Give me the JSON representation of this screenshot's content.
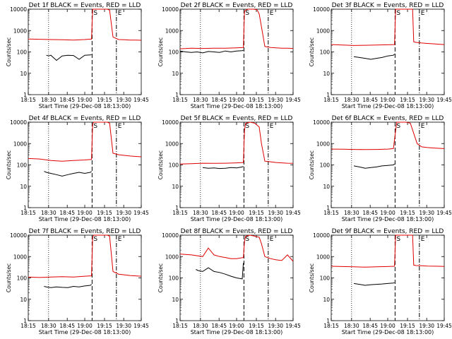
{
  "colors": {
    "events": "#000000",
    "lld": "#e00000",
    "frame": "#000000",
    "background": "#ffffff"
  },
  "chart_data": [
    {
      "type": "line",
      "title": "Det 1f BLACK = Events, RED = LLD",
      "xlabel": "Start Time (29-Dec-08 18:13:00)",
      "ylabel": "Counts/sec",
      "y_scale": "log",
      "ylim": [
        1,
        10000
      ],
      "xlim": [
        0,
        100
      ],
      "x_ticks": [
        "18:15",
        "18:30",
        "18:45",
        "19:00",
        "19:15",
        "19:30",
        "19:45"
      ],
      "y_ticks": [
        "1",
        "10",
        "100",
        "1000",
        "10000"
      ],
      "markers": [
        "S",
        "E"
      ],
      "series": [
        {
          "role": "lld",
          "x": [
            0,
            10,
            20,
            30,
            40,
            50,
            56,
            57,
            58,
            60,
            65,
            70,
            72,
            75,
            80,
            85,
            90,
            95,
            100
          ],
          "y": [
            400,
            390,
            380,
            370,
            360,
            380,
            400,
            10000,
            10000,
            10000,
            10000,
            10000,
            9000,
            500,
            380,
            370,
            360,
            360,
            350
          ]
        },
        {
          "role": "events",
          "x": [
            16,
            18,
            20,
            25,
            30,
            35,
            40,
            45,
            50,
            55,
            56
          ],
          "y": [
            70,
            65,
            70,
            40,
            65,
            70,
            68,
            45,
            70,
            72,
            75
          ]
        }
      ]
    },
    {
      "type": "line",
      "title": "Det 2f BLACK = Events, RED = LLD",
      "xlabel": "Start Time (29-Dec-08 18:13:00)",
      "ylabel": "Counts/sec",
      "y_scale": "log",
      "ylim": [
        1,
        10000
      ],
      "xlim": [
        0,
        100
      ],
      "x_ticks": [
        "18:15",
        "18:30",
        "18:45",
        "19:00",
        "19:15",
        "19:30",
        "19:45"
      ],
      "y_ticks": [
        "1",
        "10",
        "100",
        "1000",
        "10000"
      ],
      "markers": [
        "S",
        "E"
      ],
      "series": [
        {
          "role": "lld",
          "x": [
            0,
            10,
            20,
            30,
            40,
            50,
            56,
            57,
            58,
            60,
            65,
            68,
            70,
            72,
            75,
            80,
            85,
            90,
            95,
            100
          ],
          "y": [
            140,
            150,
            145,
            150,
            150,
            155,
            160,
            8000,
            9000,
            10000,
            10000,
            9500,
            6000,
            1500,
            180,
            160,
            155,
            150,
            150,
            145
          ]
        },
        {
          "role": "events",
          "x": [
            0,
            5,
            10,
            15,
            20,
            25,
            30,
            35,
            40,
            45,
            50,
            55,
            56
          ],
          "y": [
            110,
            100,
            95,
            100,
            90,
            105,
            100,
            95,
            110,
            100,
            110,
            115,
            120
          ]
        }
      ]
    },
    {
      "type": "line",
      "title": "Det 3f BLACK = Events, RED = LLD",
      "xlabel": "Start Time (29-Dec-08 18:13:00)",
      "ylabel": "Counts/sec",
      "y_scale": "log",
      "ylim": [
        1,
        10000
      ],
      "xlim": [
        0,
        100
      ],
      "x_ticks": [
        "18:15",
        "18:30",
        "18:45",
        "19:00",
        "19:15",
        "19:30",
        "19:45"
      ],
      "y_ticks": [
        "1",
        "10",
        "100",
        "1000",
        "10000"
      ],
      "markers": [
        "S",
        "E"
      ],
      "series": [
        {
          "role": "lld",
          "x": [
            0,
            10,
            20,
            30,
            40,
            50,
            56,
            57,
            58,
            65,
            72,
            73,
            75,
            80,
            85,
            90,
            95,
            100
          ],
          "y": [
            220,
            210,
            200,
            205,
            210,
            215,
            220,
            10000,
            10000,
            10000,
            10000,
            300,
            280,
            260,
            250,
            240,
            230,
            220
          ]
        },
        {
          "role": "events",
          "x": [
            20,
            25,
            30,
            35,
            40,
            45,
            50,
            55,
            56
          ],
          "y": [
            60,
            55,
            50,
            45,
            50,
            55,
            65,
            70,
            80
          ]
        }
      ]
    },
    {
      "type": "line",
      "title": "Det 4f BLACK = Events, RED = LLD",
      "xlabel": "Start Time (29-Dec-08 18:13:00)",
      "ylabel": "Counts/sec",
      "y_scale": "log",
      "ylim": [
        1,
        10000
      ],
      "xlim": [
        0,
        100
      ],
      "x_ticks": [
        "18:15",
        "18:30",
        "18:45",
        "19:00",
        "19:15",
        "19:30",
        "19:45"
      ],
      "y_ticks": [
        "1",
        "10",
        "100",
        "1000",
        "10000"
      ],
      "markers": [
        "S",
        "E"
      ],
      "series": [
        {
          "role": "lld",
          "x": [
            0,
            10,
            20,
            30,
            40,
            50,
            56,
            57,
            58,
            65,
            70,
            72,
            75,
            80,
            85,
            90,
            95,
            100
          ],
          "y": [
            200,
            190,
            160,
            150,
            160,
            170,
            180,
            8000,
            10000,
            10000,
            10000,
            9000,
            350,
            300,
            280,
            260,
            250,
            240
          ]
        },
        {
          "role": "events",
          "x": [
            14,
            16,
            20,
            25,
            30,
            35,
            40,
            45,
            50,
            55,
            56
          ],
          "y": [
            50,
            45,
            40,
            35,
            30,
            35,
            40,
            45,
            40,
            45,
            50
          ]
        }
      ]
    },
    {
      "type": "line",
      "title": "Det 5f BLACK = Events, RED = LLD",
      "xlabel": "Start Time (29-Dec-08 18:13:00)",
      "ylabel": "Counts/sec",
      "y_scale": "log",
      "ylim": [
        1,
        10000
      ],
      "xlim": [
        0,
        100
      ],
      "x_ticks": [
        "18:15",
        "18:30",
        "18:45",
        "19:00",
        "19:15",
        "19:30",
        "19:45"
      ],
      "y_ticks": [
        "1",
        "10",
        "100",
        "1000",
        "10000"
      ],
      "markers": [
        "S",
        "E"
      ],
      "series": [
        {
          "role": "lld",
          "x": [
            0,
            10,
            20,
            30,
            40,
            50,
            56,
            57,
            58,
            62,
            66,
            70,
            72,
            75,
            80,
            85,
            90,
            95,
            100
          ],
          "y": [
            110,
            115,
            120,
            118,
            120,
            125,
            130,
            4000,
            9000,
            10000,
            9000,
            6000,
            1000,
            150,
            140,
            130,
            125,
            120,
            118
          ]
        },
        {
          "role": "events",
          "x": [
            20,
            25,
            30,
            35,
            40,
            45,
            50,
            55,
            56
          ],
          "y": [
            75,
            70,
            72,
            68,
            70,
            75,
            72,
            80,
            85
          ]
        }
      ]
    },
    {
      "type": "line",
      "title": "Det 6f BLACK = Events, RED = LLD",
      "xlabel": "Start Time (29-Dec-08 18:13:00)",
      "ylabel": "Counts/sec",
      "y_scale": "log",
      "ylim": [
        1,
        10000
      ],
      "xlim": [
        0,
        100
      ],
      "x_ticks": [
        "18:15",
        "18:30",
        "18:45",
        "19:00",
        "19:15",
        "19:30",
        "19:45"
      ],
      "y_ticks": [
        "1",
        "10",
        "100",
        "1000",
        "10000"
      ],
      "markers": [
        "S",
        "E"
      ],
      "series": [
        {
          "role": "lld",
          "x": [
            0,
            10,
            20,
            30,
            40,
            50,
            55,
            57,
            58,
            62,
            66,
            70,
            73,
            76,
            80,
            85,
            90,
            95,
            100
          ],
          "y": [
            550,
            540,
            530,
            520,
            530,
            550,
            580,
            4000,
            10000,
            10000,
            10000,
            9000,
            3000,
            1000,
            700,
            650,
            620,
            600,
            580
          ]
        },
        {
          "role": "events",
          "x": [
            20,
            25,
            30,
            35,
            40,
            45,
            50,
            55,
            56
          ],
          "y": [
            90,
            80,
            70,
            75,
            80,
            90,
            95,
            100,
            110
          ]
        }
      ]
    },
    {
      "type": "line",
      "title": "Det 7f BLACK = Events, RED = LLD",
      "xlabel": "Start Time (29-Dec-08 18:13:00)",
      "ylabel": "Counts/sec",
      "y_scale": "log",
      "ylim": [
        1,
        10000
      ],
      "xlim": [
        0,
        100
      ],
      "x_ticks": [
        "18:15",
        "18:30",
        "18:45",
        "19:00",
        "19:15",
        "19:30",
        "19:45"
      ],
      "y_ticks": [
        "1",
        "10",
        "100",
        "1000",
        "10000"
      ],
      "markers": [
        "S",
        "E"
      ],
      "series": [
        {
          "role": "lld",
          "x": [
            0,
            10,
            20,
            30,
            40,
            50,
            56,
            57,
            58,
            65,
            70,
            72,
            75,
            80,
            85,
            90,
            95,
            100
          ],
          "y": [
            110,
            105,
            110,
            115,
            110,
            120,
            125,
            8000,
            10000,
            10000,
            10000,
            9000,
            200,
            150,
            140,
            130,
            125,
            120
          ]
        },
        {
          "role": "events",
          "x": [
            14,
            16,
            20,
            25,
            30,
            35,
            40,
            45,
            50,
            55,
            56
          ],
          "y": [
            40,
            38,
            35,
            38,
            36,
            35,
            40,
            38,
            42,
            45,
            50
          ]
        }
      ]
    },
    {
      "type": "line",
      "title": "Det 8f BLACK = Events, RED = LLD",
      "xlabel": "Start Time (29-Dec-08 18:13:00)",
      "ylabel": "Counts/sec",
      "y_scale": "log",
      "ylim": [
        1,
        10000
      ],
      "xlim": [
        0,
        100
      ],
      "x_ticks": [
        "18:15",
        "18:30",
        "18:45",
        "19:00",
        "19:15",
        "19:30",
        "19:45"
      ],
      "y_ticks": [
        "1",
        "10",
        "100",
        "1000",
        "10000"
      ],
      "markers": [
        "S",
        "E"
      ],
      "series": [
        {
          "role": "lld",
          "x": [
            0,
            10,
            20,
            25,
            30,
            35,
            40,
            45,
            50,
            56,
            57,
            58,
            62,
            66,
            70,
            72,
            75,
            80,
            85,
            90,
            95,
            100
          ],
          "y": [
            1300,
            1200,
            1000,
            2500,
            1200,
            1000,
            900,
            800,
            800,
            900,
            5000,
            9000,
            10000,
            9000,
            8000,
            4000,
            1000,
            800,
            700,
            650,
            1200,
            600
          ]
        },
        {
          "role": "events",
          "x": [
            14,
            16,
            20,
            25,
            30,
            35,
            40,
            45,
            50,
            55,
            56
          ],
          "y": [
            250,
            220,
            200,
            300,
            200,
            180,
            150,
            120,
            100,
            90,
            500
          ]
        }
      ]
    },
    {
      "type": "line",
      "title": "Det 9f BLACK = Events, RED = LLD",
      "xlabel": "Start Time (29-Dec-08 18:13:00)",
      "ylabel": "Counts/sec",
      "y_scale": "log",
      "ylim": [
        1,
        10000
      ],
      "xlim": [
        0,
        100
      ],
      "x_ticks": [
        "18:15",
        "18:30",
        "18:45",
        "19:00",
        "19:15",
        "19:30",
        "19:45"
      ],
      "y_ticks": [
        "1",
        "10",
        "100",
        "1000",
        "10000"
      ],
      "markers": [
        "S",
        "E"
      ],
      "series": [
        {
          "role": "lld",
          "x": [
            0,
            10,
            20,
            30,
            40,
            50,
            56,
            57,
            58,
            65,
            72,
            73,
            75,
            80,
            85,
            90,
            95,
            100
          ],
          "y": [
            350,
            340,
            330,
            320,
            330,
            340,
            350,
            10000,
            10000,
            10000,
            10000,
            400,
            380,
            370,
            360,
            355,
            350,
            345
          ]
        },
        {
          "role": "events",
          "x": [
            20,
            25,
            30,
            35,
            40,
            45,
            50,
            55,
            56
          ],
          "y": [
            55,
            50,
            45,
            48,
            50,
            52,
            55,
            58,
            60
          ]
        }
      ]
    }
  ]
}
